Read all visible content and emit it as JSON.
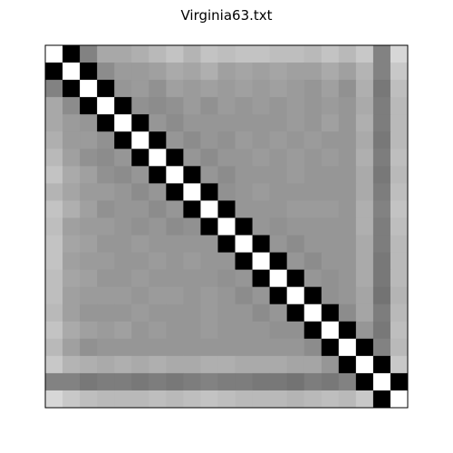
{
  "chart_data": {
    "type": "heatmap",
    "title": "Virginia63.txt",
    "xlabel": "",
    "ylabel": "",
    "colormap": "grayscale",
    "ticks_visible": false,
    "grid": false,
    "size": 21,
    "gray_levels": [
      [
        255,
        0,
        130,
        168,
        168,
        175,
        185,
        195,
        180,
        195,
        190,
        195,
        195,
        190,
        190,
        185,
        195,
        185,
        200,
        130,
        215
      ],
      [
        0,
        255,
        0,
        140,
        155,
        155,
        160,
        170,
        165,
        175,
        160,
        165,
        160,
        165,
        160,
        160,
        170,
        160,
        180,
        130,
        200
      ],
      [
        130,
        0,
        255,
        0,
        150,
        155,
        145,
        160,
        155,
        160,
        155,
        160,
        155,
        160,
        155,
        150,
        160,
        145,
        175,
        120,
        190
      ],
      [
        168,
        140,
        0,
        255,
        0,
        145,
        140,
        145,
        155,
        145,
        155,
        150,
        155,
        150,
        155,
        150,
        155,
        150,
        170,
        125,
        185
      ],
      [
        168,
        155,
        150,
        0,
        255,
        0,
        150,
        140,
        150,
        150,
        150,
        150,
        150,
        150,
        155,
        150,
        160,
        150,
        175,
        125,
        185
      ],
      [
        175,
        155,
        155,
        145,
        0,
        255,
        0,
        150,
        140,
        150,
        145,
        155,
        150,
        155,
        150,
        155,
        150,
        150,
        170,
        120,
        185
      ],
      [
        185,
        160,
        145,
        140,
        150,
        0,
        255,
        0,
        150,
        140,
        150,
        150,
        155,
        150,
        155,
        150,
        155,
        150,
        175,
        125,
        190
      ],
      [
        195,
        170,
        160,
        145,
        140,
        150,
        0,
        255,
        0,
        150,
        140,
        150,
        150,
        150,
        155,
        150,
        150,
        150,
        170,
        120,
        185
      ],
      [
        180,
        165,
        155,
        155,
        150,
        140,
        150,
        0,
        255,
        0,
        145,
        150,
        155,
        150,
        150,
        150,
        150,
        150,
        170,
        125,
        190
      ],
      [
        195,
        175,
        160,
        145,
        150,
        150,
        140,
        150,
        0,
        255,
        0,
        150,
        150,
        150,
        155,
        155,
        155,
        150,
        175,
        130,
        195
      ],
      [
        190,
        160,
        155,
        155,
        150,
        145,
        150,
        140,
        145,
        0,
        255,
        0,
        150,
        145,
        150,
        150,
        150,
        150,
        175,
        125,
        190
      ],
      [
        195,
        165,
        160,
        150,
        150,
        155,
        150,
        150,
        150,
        150,
        0,
        255,
        0,
        150,
        140,
        150,
        150,
        150,
        170,
        125,
        185
      ],
      [
        195,
        160,
        155,
        155,
        150,
        150,
        155,
        150,
        155,
        150,
        150,
        0,
        255,
        0,
        150,
        140,
        150,
        150,
        170,
        120,
        185
      ],
      [
        190,
        165,
        160,
        150,
        150,
        155,
        150,
        150,
        150,
        150,
        145,
        150,
        0,
        255,
        0,
        150,
        145,
        150,
        170,
        120,
        185
      ],
      [
        190,
        160,
        155,
        155,
        155,
        150,
        155,
        155,
        150,
        155,
        150,
        140,
        150,
        0,
        255,
        0,
        145,
        150,
        165,
        115,
        180
      ],
      [
        185,
        160,
        150,
        150,
        150,
        155,
        150,
        150,
        150,
        155,
        150,
        150,
        140,
        150,
        0,
        255,
        0,
        140,
        165,
        125,
        185
      ],
      [
        195,
        170,
        160,
        155,
        160,
        150,
        155,
        150,
        150,
        155,
        150,
        150,
        150,
        145,
        145,
        0,
        255,
        0,
        150,
        120,
        190
      ],
      [
        185,
        160,
        145,
        150,
        150,
        150,
        150,
        150,
        150,
        150,
        150,
        150,
        150,
        150,
        150,
        140,
        0,
        255,
        0,
        130,
        185
      ],
      [
        200,
        180,
        175,
        170,
        175,
        170,
        175,
        170,
        170,
        175,
        175,
        170,
        170,
        170,
        165,
        165,
        150,
        0,
        255,
        0,
        200
      ],
      [
        130,
        130,
        120,
        125,
        125,
        120,
        125,
        120,
        125,
        130,
        125,
        125,
        120,
        120,
        115,
        125,
        120,
        130,
        0,
        255,
        0
      ],
      [
        215,
        200,
        190,
        185,
        185,
        185,
        190,
        185,
        190,
        195,
        190,
        185,
        185,
        185,
        180,
        185,
        190,
        185,
        200,
        0,
        255
      ]
    ]
  }
}
